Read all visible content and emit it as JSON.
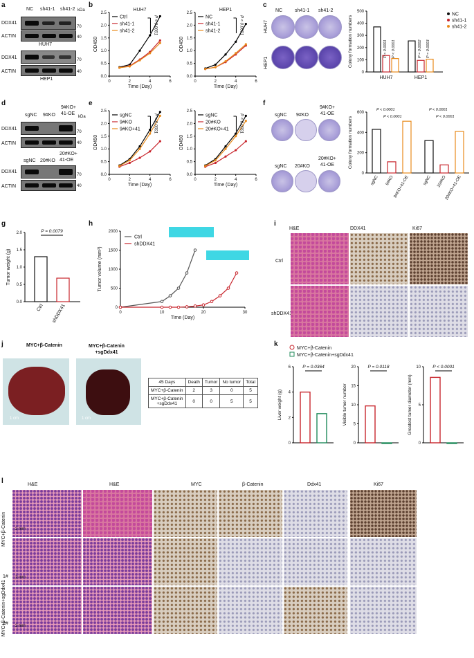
{
  "panel_letters": [
    "a",
    "b",
    "c",
    "d",
    "e",
    "f",
    "g",
    "h",
    "i",
    "j",
    "k",
    "l"
  ],
  "a": {
    "lanes": [
      "NC",
      "sh41-1",
      "sh41-2"
    ],
    "rows": [
      "DDX41",
      "ACTIN",
      "DDX41",
      "ACTIN"
    ],
    "cells": [
      "HUH7",
      "HEP1"
    ],
    "kda": "kDa",
    "m70a": "70",
    "m40a": "40",
    "m70b": "70",
    "m40b": "40"
  },
  "b": {
    "charts": [
      {
        "title": "HUH7",
        "series": [
          "Ctrl",
          "sh41-1",
          "sh41-2"
        ],
        "p": "P < 0.0001",
        "ylabel": "OD450",
        "xlabel": "Time (Day)"
      },
      {
        "title": "HEP1",
        "series": [
          "NC",
          "sh41-1",
          "sh41-2"
        ],
        "p": "P < 0.0001",
        "ylabel": "OD450",
        "xlabel": "Time (Day)"
      }
    ],
    "yticks": [
      "0.0",
      "0.5",
      "1.0",
      "1.5",
      "2.0",
      "2.5"
    ],
    "xticks": [
      "0",
      "2",
      "4",
      "6"
    ]
  },
  "c": {
    "cols": [
      "NC",
      "sh41-1",
      "sh41-2"
    ],
    "rows": [
      "HUH7",
      "HEP1"
    ],
    "legend": [
      "NC",
      "sh41-1",
      "sh41-2"
    ],
    "ylabel": "Colony formation numbers",
    "yticks": [
      "0",
      "100",
      "200",
      "300",
      "400",
      "500"
    ],
    "p1": "P < 0.0001",
    "p2": "P < 0.0001",
    "p3": "P = 0.0002",
    "p4": "P = 0.0003",
    "groups": [
      "HUH7",
      "HEP1"
    ]
  },
  "d": {
    "lanes1": [
      "sgNC",
      "9#KO",
      "9#KO+\n41-OE"
    ],
    "lanes2": [
      "sgNC",
      "20#KO",
      "20#KO+\n41-OE"
    ],
    "rows": [
      "DDX41",
      "ACTIN",
      "DDX41",
      "ACTIN"
    ],
    "kda": "kDa",
    "m70": "70",
    "m40": "40"
  },
  "e": {
    "charts": [
      {
        "series": [
          "sgNC",
          "9#KO",
          "9#KO+41"
        ],
        "p": "P < 0.0001"
      },
      {
        "series": [
          "sgNC",
          "20#KO",
          "20#KO+41"
        ],
        "p": "P < 0.0001"
      }
    ],
    "ylabel": "OD450",
    "xlabel": "Time (Day)"
  },
  "f": {
    "row1": [
      "sgNC",
      "9#KO",
      "9#KO+\n41-OE"
    ],
    "row2": [
      "sgNC",
      "20#KO",
      "20#KO+\n41-OE"
    ],
    "ylabel": "Colony formation numbers",
    "p_a": "P < 0.0001",
    "p_b": "P < 0.0001",
    "p_c": "P < 0.0001",
    "p_d": "P < 0.0001",
    "xcats": [
      "sgNC",
      "9#KO",
      "9#KO+41-OE",
      "sgNC",
      "20#KO",
      "20#KO+41-OE"
    ]
  },
  "g": {
    "ylabel": "Tumor weight (g)",
    "p": "P = 0.0079",
    "cats": [
      "Ctrl",
      "shDDX41"
    ],
    "yticks": [
      "0.0",
      "0.5",
      "1.0",
      "1.5",
      "2.0"
    ]
  },
  "h": {
    "ylabel": "Tumor volume (mm³)",
    "xlabel": "Time (Day)",
    "legend": [
      "Ctrl",
      "shDDX41"
    ],
    "yticks": [
      "0",
      "500",
      "1000",
      "1500",
      "2000"
    ],
    "xticks": [
      "0",
      "10",
      "20",
      "30"
    ]
  },
  "i": {
    "cols": [
      "H&E",
      "DDX41",
      "Ki67"
    ],
    "rows": [
      "Ctrl",
      "shDDX41"
    ]
  },
  "j": {
    "titles": [
      "MYC+β-Catenin",
      "MYC+β-Catenin\n+sgDdx41"
    ],
    "scale": "1 cm",
    "table": {
      "header": [
        "45 Days",
        "Death",
        "Tumor",
        "No tumor",
        "Total"
      ],
      "rows": [
        [
          "MYC+β-Catenin",
          "2",
          "3",
          "0",
          "5"
        ],
        [
          "MYC+β-Catenin\n+sgDdx41",
          "0",
          "0",
          "5",
          "5"
        ]
      ]
    }
  },
  "k": {
    "legend": [
      "MYC+β-Catenin",
      "MYC+β-Catenin+sgDdx41"
    ],
    "charts": [
      {
        "ylabel": "Liver weight (g)",
        "p": "P = 0.0364",
        "yticks": [
          "0",
          "2",
          "4",
          "6"
        ]
      },
      {
        "ylabel": "Visible tumor number",
        "p": "P = 0.0118",
        "yticks": [
          "0",
          "5",
          "10",
          "15",
          "20"
        ]
      },
      {
        "ylabel": "Greatest tumor diameter (mm)",
        "p": "P < 0.0001",
        "yticks": [
          "0",
          "5",
          "10"
        ]
      }
    ]
  },
  "l": {
    "cols": [
      "H&E",
      "H&E",
      "MYC",
      "β-Catenin",
      "Ddx41",
      "Ki67"
    ],
    "group1": "MYC+β-Catenin",
    "group2": "MYC+β-Catenin+sgDdx41",
    "rows": [
      "",
      "1#",
      "2#"
    ],
    "scale": "2 mm"
  },
  "chart_data": [
    {
      "type": "line",
      "title": "HUH7",
      "x": [
        1,
        2,
        3,
        4,
        5
      ],
      "series": [
        {
          "name": "Ctrl",
          "values": [
            0.35,
            0.45,
            1.0,
            1.6,
            2.35
          ]
        },
        {
          "name": "sh41-1",
          "values": [
            0.33,
            0.4,
            0.65,
            0.95,
            1.4
          ]
        },
        {
          "name": "sh41-2",
          "values": [
            0.33,
            0.38,
            0.62,
            0.9,
            1.3
          ]
        }
      ],
      "xlabel": "Time (Day)",
      "ylabel": "OD450",
      "ylim": [
        0,
        2.5
      ]
    },
    {
      "type": "line",
      "title": "HEP1",
      "x": [
        1,
        2,
        3,
        4,
        5
      ],
      "series": [
        {
          "name": "NC",
          "values": [
            0.3,
            0.45,
            0.85,
            1.35,
            2.05
          ]
        },
        {
          "name": "sh41-1",
          "values": [
            0.28,
            0.35,
            0.55,
            0.85,
            1.2
          ]
        },
        {
          "name": "sh41-2",
          "values": [
            0.28,
            0.35,
            0.58,
            0.9,
            1.25
          ]
        }
      ],
      "xlabel": "Time (Day)",
      "ylabel": "OD450",
      "ylim": [
        0,
        2.5
      ]
    },
    {
      "type": "bar",
      "categories": [
        "HUH7",
        "HEP1"
      ],
      "series": [
        {
          "name": "NC",
          "values": [
            370,
            255
          ]
        },
        {
          "name": "sh41-1",
          "values": [
            135,
            95
          ]
        },
        {
          "name": "sh41-2",
          "values": [
            110,
            105
          ]
        }
      ],
      "ylabel": "Colony formation numbers",
      "ylim": [
        0,
        500
      ]
    },
    {
      "type": "line",
      "x": [
        1,
        2,
        3,
        4,
        5
      ],
      "series": [
        {
          "name": "sgNC",
          "values": [
            0.35,
            0.6,
            1.1,
            1.75,
            2.45
          ]
        },
        {
          "name": "9#KO",
          "values": [
            0.3,
            0.45,
            0.65,
            0.9,
            1.3
          ]
        },
        {
          "name": "9#KO+41",
          "values": [
            0.33,
            0.55,
            1.0,
            1.6,
            2.3
          ]
        }
      ],
      "xlabel": "Time (Day)",
      "ylabel": "OD450",
      "ylim": [
        0,
        2.5
      ]
    },
    {
      "type": "line",
      "x": [
        1,
        2,
        3,
        4,
        5
      ],
      "series": [
        {
          "name": "sgNC",
          "values": [
            0.35,
            0.6,
            1.1,
            1.6,
            2.3
          ]
        },
        {
          "name": "20#KO",
          "values": [
            0.3,
            0.45,
            0.7,
            0.95,
            1.3
          ]
        },
        {
          "name": "20#KO+41",
          "values": [
            0.33,
            0.55,
            1.0,
            1.5,
            2.1
          ]
        }
      ],
      "xlabel": "Time (Day)",
      "ylabel": "OD450",
      "ylim": [
        0,
        2.5
      ]
    },
    {
      "type": "bar",
      "categories": [
        "sgNC",
        "9#KO",
        "9#KO+41-OE",
        "sgNC",
        "20#KO",
        "20#KO+41-OE"
      ],
      "values": [
        430,
        110,
        510,
        320,
        80,
        410
      ],
      "ylabel": "Colony formation numbers",
      "ylim": [
        0,
        600
      ]
    },
    {
      "type": "bar",
      "categories": [
        "Ctrl",
        "shDDX41"
      ],
      "values": [
        1.3,
        0.68
      ],
      "ylabel": "Tumor weight (g)",
      "ylim": [
        0,
        2.0
      ]
    },
    {
      "type": "line",
      "x": [
        0,
        10,
        12,
        14,
        16,
        18,
        20,
        22,
        24,
        26,
        28
      ],
      "series": [
        {
          "name": "Ctrl",
          "values": [
            0,
            150,
            300,
            500,
            900,
            1500,
            null,
            null,
            null,
            null,
            null
          ]
        },
        {
          "name": "shDDX41",
          "values": [
            0,
            0,
            0,
            0,
            10,
            30,
            60,
            150,
            300,
            500,
            900
          ]
        }
      ],
      "xlabel": "Time (Day)",
      "ylabel": "Tumor volume (mm³)",
      "ylim": [
        0,
        2000
      ]
    },
    {
      "type": "bar",
      "categories": [
        "MYC+β-Catenin",
        "MYC+β-Catenin+sgDdx41"
      ],
      "values": [
        4.0,
        2.3
      ],
      "ylabel": "Liver weight (g)",
      "ylim": [
        0,
        6
      ]
    },
    {
      "type": "bar",
      "categories": [
        "MYC+β-Catenin",
        "MYC+β-Catenin+sgDdx41"
      ],
      "values": [
        9.7,
        0
      ],
      "ylabel": "Visible tumor number",
      "ylim": [
        0,
        20
      ]
    },
    {
      "type": "bar",
      "categories": [
        "MYC+β-Catenin",
        "MYC+β-Catenin+sgDdx41"
      ],
      "values": [
        8.6,
        0
      ],
      "ylabel": "Greatest tumor diameter (mm)",
      "ylim": [
        0,
        10
      ]
    }
  ]
}
